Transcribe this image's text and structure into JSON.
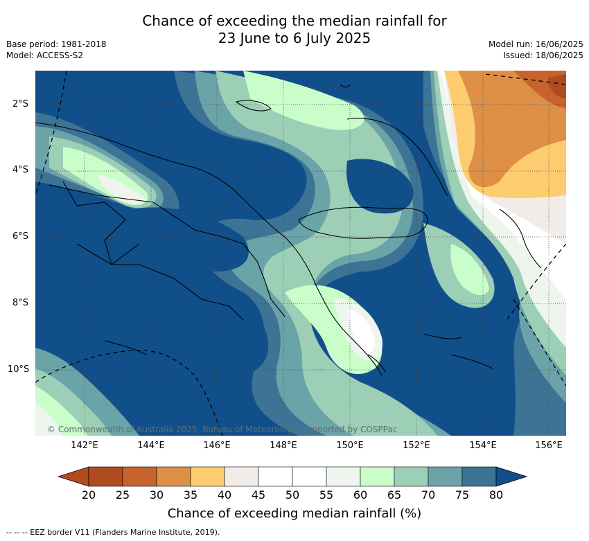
{
  "title": {
    "line1": "Chance of exceeding the median rainfall for",
    "line2": "23 June to 6 July 2025"
  },
  "meta": {
    "base_period": "Base period: 1981-2018",
    "model": "Model: ACCESS-S2",
    "model_run": "Model run: 16/06/2025",
    "issued": "Issued: 18/06/2025"
  },
  "map": {
    "latitude_labels": [
      "2°S",
      "4°S",
      "6°S",
      "8°S",
      "10°S"
    ],
    "longitude_labels": [
      "142°E",
      "144°E",
      "146°E",
      "148°E",
      "150°E",
      "152°E",
      "154°E",
      "156°E"
    ],
    "copyright": "© Commonwealth of Australia 2025, Bureau of Meteorology, supported by COSPPac"
  },
  "colorbar": {
    "ticks": [
      "20",
      "25",
      "30",
      "35",
      "40",
      "45",
      "50",
      "55",
      "60",
      "65",
      "70",
      "75",
      "80"
    ],
    "colors": [
      "#b04a1f",
      "#c8632d",
      "#de8f46",
      "#fdcc6e",
      "#f1ece8",
      "#ffffff",
      "#ffffff",
      "#edf5ed",
      "#c9fdc9",
      "#9ccfb6",
      "#6aa3a8",
      "#3d7495",
      "#114f8a"
    ],
    "label": "Chance of exceeding median rainfall (%)"
  },
  "footnote": "--  --  -- EEZ border V11 (Flanders Marine Institute, 2019)."
}
